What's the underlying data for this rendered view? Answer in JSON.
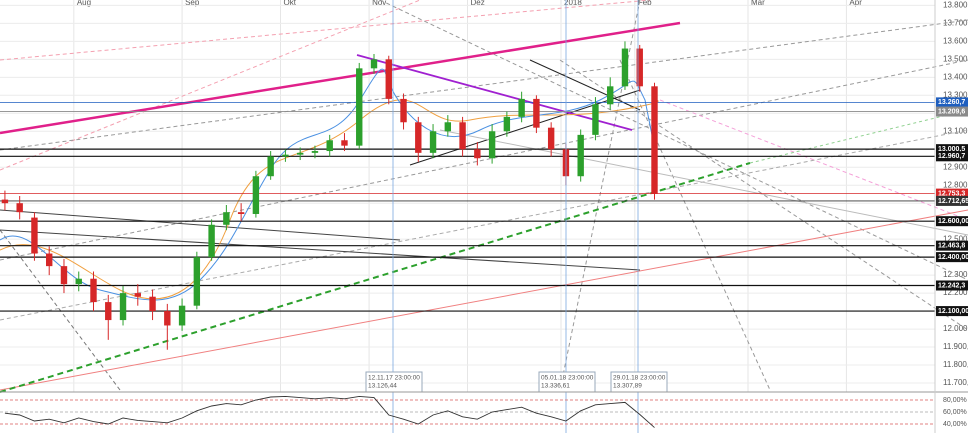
{
  "chart_data": {
    "type": "candlestick",
    "xlim": [
      0,
      190
    ],
    "xticks": [
      {
        "value": 15,
        "label": "Aug"
      },
      {
        "value": 37,
        "label": "Sep"
      },
      {
        "value": 57,
        "label": "Okt"
      },
      {
        "value": 75,
        "label": "Nov"
      },
      {
        "value": 95,
        "label": "Dez"
      },
      {
        "value": 114,
        "label": "2018"
      },
      {
        "value": 129,
        "label": "Feb"
      },
      {
        "value": 152,
        "label": "Mär"
      },
      {
        "value": 172,
        "label": "Apr"
      }
    ],
    "ylim": [
      11650,
      13830
    ],
    "yticks": [
      {
        "value": 13800,
        "label": "13.800,0"
      },
      {
        "value": 13700,
        "label": "13.700,0"
      },
      {
        "value": 13600,
        "label": "13.600,0"
      },
      {
        "value": 13500,
        "label": "13.500,0"
      },
      {
        "value": 13400,
        "label": "13.400,0"
      },
      {
        "value": 13300,
        "label": "13.300,0"
      },
      {
        "value": 13200,
        "label": "13.200,0"
      },
      {
        "value": 13100,
        "label": "13.100,0"
      },
      {
        "value": 13000,
        "label": "13.000,0"
      },
      {
        "value": 12900,
        "label": "12.900,0"
      },
      {
        "value": 12800,
        "label": "12.800,0"
      },
      {
        "value": 12700,
        "label": "12.700,0"
      },
      {
        "value": 12600,
        "label": "12.600,0"
      },
      {
        "value": 12500,
        "label": "12.500,0"
      },
      {
        "value": 12400,
        "label": "12.400,0"
      },
      {
        "value": 12300,
        "label": "12.300,0"
      },
      {
        "value": 12200,
        "label": "12.200,0"
      },
      {
        "value": 12100,
        "label": "12.100,0"
      },
      {
        "value": 12000,
        "label": "12.000,0"
      },
      {
        "value": 11900,
        "label": "11.900,0"
      },
      {
        "value": 11800,
        "label": "11.800,0"
      },
      {
        "value": 11700,
        "label": "11.700,0"
      }
    ],
    "grid": true,
    "up_color": "#2ca02c",
    "down_color": "#d62728",
    "x": [
      1,
      4,
      7,
      10,
      13,
      16,
      19,
      22,
      25,
      28,
      31,
      34,
      37,
      40,
      43,
      46,
      49,
      52,
      55,
      58,
      61,
      64,
      67,
      70,
      73,
      76,
      79,
      82,
      85,
      88,
      91,
      94,
      97,
      100,
      103,
      106,
      109,
      112,
      115,
      118,
      121,
      124,
      127,
      130,
      133
    ],
    "open": [
      12720,
      12700,
      12620,
      12420,
      12350,
      12250,
      12280,
      12150,
      12050,
      12200,
      12180,
      12100,
      12020,
      12130,
      12400,
      12580,
      12650,
      12640,
      12850,
      12960,
      12970,
      12980,
      12990,
      13050,
      13020,
      13450,
      13500,
      13280,
      13150,
      12980,
      13100,
      13150,
      13000,
      12950,
      13100,
      13180,
      13280,
      13120,
      13000,
      12850,
      13080,
      13250,
      13350,
      13560,
      13350
    ],
    "high": [
      12770,
      12740,
      12650,
      12460,
      12390,
      12320,
      12320,
      12190,
      12240,
      12250,
      12220,
      12140,
      12170,
      12430,
      12610,
      12690,
      12700,
      12880,
      12990,
      13000,
      13010,
      13020,
      13080,
      13090,
      13480,
      13530,
      13520,
      13310,
      13180,
      13140,
      13190,
      13180,
      13040,
      13140,
      13210,
      13320,
      13300,
      13150,
      13030,
      13110,
      13290,
      13400,
      13600,
      13580,
      13370
    ],
    "low": [
      12660,
      12610,
      12380,
      12300,
      12200,
      12210,
      12100,
      11940,
      12020,
      12130,
      12050,
      11885,
      11990,
      12110,
      12380,
      12550,
      12600,
      12620,
      12830,
      12930,
      12940,
      12950,
      12960,
      12990,
      13000,
      13420,
      13250,
      13110,
      12930,
      12950,
      13070,
      12960,
      12910,
      12920,
      13070,
      13150,
      13090,
      12960,
      12800,
      12820,
      13050,
      13220,
      13330,
      13320,
      12720
    ],
    "close": [
      12700,
      12650,
      12420,
      12350,
      12250,
      12280,
      12150,
      12050,
      12200,
      12180,
      12100,
      12020,
      12130,
      12400,
      12580,
      12650,
      12640,
      12850,
      12960,
      12970,
      12980,
      12990,
      13050,
      13020,
      13450,
      13500,
      13280,
      13150,
      12980,
      13100,
      13150,
      13000,
      12950,
      13100,
      13180,
      13280,
      13120,
      13000,
      12850,
      13080,
      13250,
      13350,
      13560,
      13350,
      12753
    ],
    "levels": [
      {
        "value": {
          "value": 13260.7,
          "label": "13.260,7"
        },
        "color": "#1f5fbf"
      },
      {
        "value": {
          "value": 13209.6,
          "label": "13.209,6"
        },
        "color": "#8a8a8a"
      },
      {
        "value": {
          "value": 13000.5,
          "label": "13.000,5"
        },
        "color": "#111111"
      },
      {
        "value": {
          "value": 12960.7,
          "label": "12.960,7"
        },
        "color": "#111111"
      },
      {
        "value": {
          "value": 12753.3,
          "label": "12.753,3"
        },
        "color": "#d62728"
      },
      {
        "value": {
          "value": 12712.65,
          "label": "12.712,650"
        },
        "color": "#333333"
      },
      {
        "value": {
          "value": 12600,
          "label": "12.600,00"
        },
        "color": "#111111"
      },
      {
        "value": {
          "value": 12463.8,
          "label": "12.463,8"
        },
        "color": "#111111"
      },
      {
        "value": {
          "value": 12400,
          "label": "12.400,00"
        },
        "color": "#111111"
      },
      {
        "value": {
          "value": 12242.3,
          "label": "12.242,3"
        },
        "color": "#111111"
      },
      {
        "value": {
          "value": 12100,
          "label": "12.100,00"
        },
        "color": "#111111"
      }
    ],
    "crosshairs": [
      {
        "date": "12.11.17 23:00:00",
        "value": "13.126,44"
      },
      {
        "date": "05.01.18 23:00:00",
        "value": "13.336,61"
      },
      {
        "date": "29.01.18 23:00:00",
        "value": "13.307,89"
      }
    ],
    "oscillator": {
      "type": "line",
      "color": "#333333",
      "ylim": [
        30,
        90
      ],
      "yticks": [
        {
          "value": 80,
          "label": "80,00%"
        },
        {
          "value": 60,
          "label": "60,00%"
        },
        {
          "value": 40,
          "label": "40,00%"
        }
      ],
      "x": [
        1,
        4,
        7,
        10,
        13,
        16,
        19,
        22,
        25,
        28,
        31,
        34,
        37,
        40,
        43,
        46,
        49,
        52,
        55,
        58,
        61,
        64,
        67,
        70,
        73,
        76,
        79,
        82,
        85,
        88,
        91,
        94,
        97,
        100,
        103,
        106,
        109,
        112,
        115,
        118,
        121,
        124,
        127,
        130,
        133
      ],
      "values": [
        58,
        55,
        45,
        48,
        42,
        50,
        44,
        40,
        50,
        46,
        44,
        42,
        50,
        62,
        70,
        74,
        72,
        80,
        85,
        86,
        84,
        82,
        84,
        82,
        86,
        84,
        55,
        48,
        40,
        55,
        62,
        52,
        48,
        60,
        64,
        68,
        58,
        52,
        45,
        62,
        72,
        74,
        76,
        56,
        34
      ]
    }
  }
}
